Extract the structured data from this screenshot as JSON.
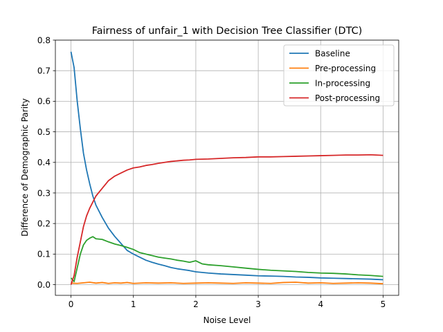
{
  "chart_data": {
    "type": "line",
    "title": "Fairness of unfair_1 with Decision Tree Classifier (DTC)",
    "xlabel": "Noise Level",
    "ylabel": "Difference of Demographic Parity",
    "xlim": [
      -0.25,
      5.25
    ],
    "ylim": [
      -0.035,
      0.8
    ],
    "xticks": [
      0,
      1,
      2,
      3,
      4,
      5
    ],
    "yticks": [
      0.0,
      0.1,
      0.2,
      0.3,
      0.4,
      0.5,
      0.6,
      0.7,
      0.8
    ],
    "xtick_labels": [
      "0",
      "1",
      "2",
      "3",
      "4",
      "5"
    ],
    "ytick_labels": [
      "0.0",
      "0.1",
      "0.2",
      "0.3",
      "0.4",
      "0.5",
      "0.6",
      "0.7",
      "0.8"
    ],
    "grid": true,
    "legend_position": "top-right",
    "series": [
      {
        "name": "Baseline",
        "color": "#1f77b4",
        "x": [
          0,
          0.05,
          0.1,
          0.15,
          0.2,
          0.25,
          0.3,
          0.35,
          0.4,
          0.5,
          0.6,
          0.7,
          0.8,
          0.9,
          1.0,
          1.1,
          1.2,
          1.3,
          1.4,
          1.5,
          1.6,
          1.7,
          1.8,
          1.9,
          2.0,
          2.2,
          2.4,
          2.6,
          2.8,
          3.0,
          3.2,
          3.4,
          3.6,
          3.8,
          4.0,
          4.2,
          4.4,
          4.6,
          4.8,
          5.0
        ],
        "y": [
          0.762,
          0.71,
          0.6,
          0.51,
          0.43,
          0.375,
          0.33,
          0.29,
          0.26,
          0.22,
          0.185,
          0.158,
          0.135,
          0.112,
          0.1,
          0.09,
          0.08,
          0.073,
          0.067,
          0.062,
          0.056,
          0.052,
          0.049,
          0.046,
          0.042,
          0.038,
          0.035,
          0.033,
          0.031,
          0.029,
          0.028,
          0.027,
          0.025,
          0.024,
          0.022,
          0.021,
          0.02,
          0.019,
          0.018,
          0.016
        ]
      },
      {
        "name": "Pre-processing",
        "color": "#ff7f0e",
        "x": [
          0,
          0.1,
          0.2,
          0.3,
          0.4,
          0.5,
          0.6,
          0.7,
          0.8,
          0.9,
          1.0,
          1.2,
          1.4,
          1.6,
          1.8,
          2.0,
          2.2,
          2.4,
          2.6,
          2.8,
          3.0,
          3.2,
          3.4,
          3.6,
          3.8,
          4.0,
          4.2,
          4.4,
          4.6,
          4.8,
          5.0
        ],
        "y": [
          0.005,
          0.004,
          0.006,
          0.008,
          0.005,
          0.007,
          0.004,
          0.006,
          0.005,
          0.007,
          0.004,
          0.006,
          0.005,
          0.006,
          0.004,
          0.005,
          0.006,
          0.005,
          0.004,
          0.006,
          0.005,
          0.004,
          0.007,
          0.008,
          0.005,
          0.006,
          0.004,
          0.005,
          0.006,
          0.005,
          0.003
        ]
      },
      {
        "name": "In-processing",
        "color": "#2ca02c",
        "x": [
          0,
          0.05,
          0.1,
          0.15,
          0.2,
          0.25,
          0.3,
          0.35,
          0.4,
          0.5,
          0.6,
          0.7,
          0.8,
          0.9,
          1.0,
          1.1,
          1.2,
          1.3,
          1.4,
          1.5,
          1.6,
          1.7,
          1.8,
          1.9,
          2.0,
          2.1,
          2.2,
          2.4,
          2.6,
          2.8,
          3.0,
          3.2,
          3.4,
          3.6,
          3.8,
          4.0,
          4.2,
          4.4,
          4.6,
          4.8,
          5.0
        ],
        "y": [
          0.022,
          0.01,
          0.055,
          0.1,
          0.13,
          0.145,
          0.152,
          0.157,
          0.15,
          0.148,
          0.14,
          0.133,
          0.128,
          0.122,
          0.115,
          0.105,
          0.1,
          0.095,
          0.09,
          0.087,
          0.084,
          0.08,
          0.077,
          0.073,
          0.078,
          0.068,
          0.065,
          0.062,
          0.058,
          0.054,
          0.05,
          0.047,
          0.045,
          0.043,
          0.04,
          0.038,
          0.037,
          0.035,
          0.032,
          0.03,
          0.027
        ]
      },
      {
        "name": "Post-processing",
        "color": "#d62728",
        "x": [
          0,
          0.05,
          0.1,
          0.15,
          0.2,
          0.25,
          0.3,
          0.35,
          0.4,
          0.5,
          0.6,
          0.7,
          0.8,
          0.9,
          1.0,
          1.1,
          1.2,
          1.3,
          1.4,
          1.5,
          1.6,
          1.7,
          1.8,
          1.9,
          2.0,
          2.2,
          2.4,
          2.6,
          2.8,
          3.0,
          3.2,
          3.4,
          3.6,
          3.8,
          4.0,
          4.2,
          4.4,
          4.6,
          4.8,
          5.0
        ],
        "y": [
          0.0,
          0.03,
          0.09,
          0.14,
          0.19,
          0.225,
          0.25,
          0.27,
          0.29,
          0.315,
          0.34,
          0.355,
          0.365,
          0.375,
          0.382,
          0.385,
          0.39,
          0.393,
          0.397,
          0.4,
          0.403,
          0.405,
          0.407,
          0.408,
          0.41,
          0.411,
          0.413,
          0.415,
          0.416,
          0.418,
          0.418,
          0.419,
          0.42,
          0.421,
          0.422,
          0.423,
          0.424,
          0.424,
          0.425,
          0.423
        ]
      }
    ]
  }
}
